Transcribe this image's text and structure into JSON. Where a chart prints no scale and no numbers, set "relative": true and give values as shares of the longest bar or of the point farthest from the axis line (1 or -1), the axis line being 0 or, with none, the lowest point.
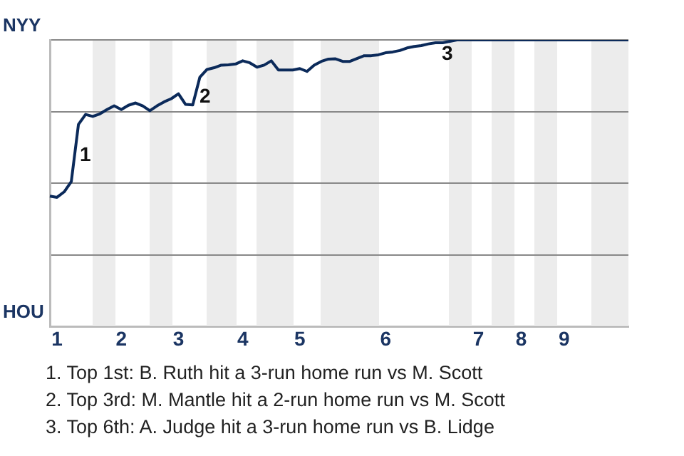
{
  "chart_data": {
    "type": "line",
    "relative": true,
    "categories": [
      null,
      "1",
      null,
      null,
      null,
      null,
      null,
      null,
      null,
      null,
      "2",
      null,
      null,
      null,
      null,
      null,
      null,
      null,
      "3",
      null,
      null,
      null,
      null,
      null,
      null,
      null,
      null,
      "4",
      null,
      null,
      null,
      null,
      null,
      null,
      null,
      "5",
      null,
      null,
      null,
      null,
      null,
      null,
      null,
      null,
      null,
      null,
      null,
      "6",
      null,
      null,
      null,
      null,
      null,
      null,
      null,
      null,
      null,
      null,
      null,
      null,
      "7",
      null,
      null,
      null,
      null,
      null,
      "8",
      null,
      null,
      null,
      null,
      null,
      "9",
      null,
      null,
      null,
      null,
      null,
      null,
      null,
      null,
      null
    ],
    "grid": "y",
    "marker": "none",
    "line_style": "solid",
    "legend": false,
    "series": [
      {
        "color": "#0b2a5a",
        "values": [
          0.455,
          0.451,
          0.47,
          0.506,
          0.705,
          0.74,
          0.733,
          0.742,
          0.757,
          0.77,
          0.757,
          0.772,
          0.78,
          0.77,
          0.753,
          0.77,
          0.784,
          0.795,
          0.812,
          0.775,
          0.773,
          0.87,
          0.897,
          0.903,
          0.912,
          0.913,
          0.916,
          0.927,
          0.92,
          0.905,
          0.912,
          0.927,
          0.895,
          0.895,
          0.895,
          0.9,
          0.89,
          0.912,
          0.925,
          0.933,
          0.934,
          0.925,
          0.925,
          0.935,
          0.945,
          0.945,
          0.948,
          0.955,
          0.958,
          0.963,
          0.972,
          0.977,
          0.98,
          0.986,
          0.99,
          0.99,
          0.995,
          1,
          1,
          1,
          1,
          1,
          1,
          1,
          1,
          1,
          1,
          1,
          1,
          1,
          1,
          1,
          1,
          1,
          1,
          1,
          1,
          1,
          1,
          1,
          1,
          1
        ],
        "name": null
      }
    ],
    "annotations": [
      "NYY",
      "HOU",
      "1",
      "2",
      "3",
      "1. Top 1st: B. Ruth hit a 3-run home run vs M. Scott",
      "2. Top 3rd: M. Mantle hit a 2-run home run vs M. Scott",
      "3. Top 6th: A. Judge hit a 3-run home run vs B. Lidge"
    ]
  }
}
